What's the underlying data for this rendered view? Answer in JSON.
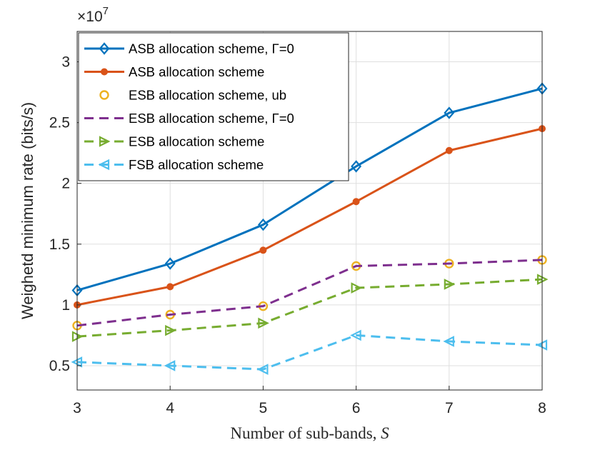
{
  "chart_data": {
    "type": "line",
    "xlabel": "Number of sub-bands, S",
    "ylabel": "Weighetd minimum rate (bits/s)",
    "y_multiplier": "×10",
    "y_multiplier_exp": "7",
    "x": [
      3,
      4,
      5,
      6,
      7,
      8
    ],
    "xlim": [
      3,
      8
    ],
    "ylim": [
      0.3,
      3.25
    ],
    "x_ticks": [
      "3",
      "4",
      "5",
      "6",
      "7",
      "8"
    ],
    "y_ticks": [
      "0.5",
      "1",
      "1.5",
      "2",
      "2.5",
      "3"
    ],
    "grid": true,
    "legend_position": "top-left",
    "series": [
      {
        "name": "ASB allocation scheme, Γ=0",
        "values": [
          1.12,
          1.34,
          1.66,
          2.14,
          2.58,
          2.78
        ],
        "color": "#0072BD",
        "marker": "diamond",
        "line": "solid"
      },
      {
        "name": "ASB allocation scheme",
        "values": [
          1.0,
          1.15,
          1.45,
          1.85,
          2.27,
          2.45
        ],
        "color": "#D95319",
        "marker": "dot",
        "line": "solid"
      },
      {
        "name": "ESB allocation scheme, ub",
        "values": [
          0.83,
          0.92,
          0.99,
          1.32,
          1.34,
          1.37
        ],
        "color": "#EDB120",
        "marker": "circle",
        "line": "none"
      },
      {
        "name": "ESB allocation scheme, Γ=0",
        "values": [
          0.83,
          0.92,
          0.99,
          1.32,
          1.34,
          1.37
        ],
        "color": "#7E2F8E",
        "marker": "none",
        "line": "dashed"
      },
      {
        "name": "ESB allocation scheme",
        "values": [
          0.74,
          0.79,
          0.85,
          1.14,
          1.17,
          1.21
        ],
        "color": "#77AC30",
        "marker": "triangle-right",
        "line": "dashed"
      },
      {
        "name": "FSB allocation scheme",
        "values": [
          0.53,
          0.5,
          0.47,
          0.75,
          0.7,
          0.67
        ],
        "color": "#4DBEEE",
        "marker": "triangle-left",
        "line": "dashed"
      }
    ]
  }
}
